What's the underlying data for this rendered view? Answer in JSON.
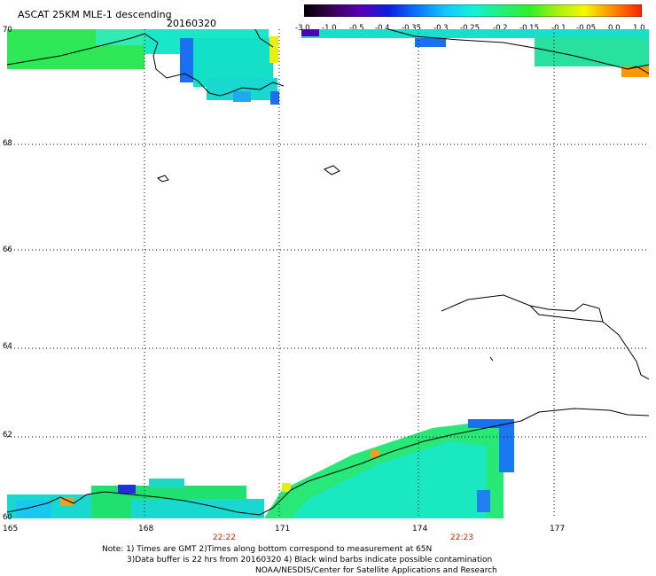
{
  "header": {
    "title": "ASCAT 25KM MLE-1 descending",
    "date": "20160320"
  },
  "colorbar": {
    "labels": [
      "-3.0",
      "-1.0",
      "-0.5",
      "-0.4",
      "-0.35",
      "-0.3",
      "-0.25",
      "-0.2",
      "-0.15",
      "-0.1",
      "-0.05",
      "0.0",
      "1.0"
    ]
  },
  "map": {
    "lat_labels": [
      "70",
      "68",
      "66",
      "64",
      "62",
      "60"
    ],
    "lon_labels": [
      "165",
      "168",
      "171",
      "174",
      "177"
    ],
    "time_labels": [
      "22:22",
      "22:23"
    ]
  },
  "footer": {
    "line1": "Note: 1) Times are GMT 2)Times along bottom correspond to measurement at 65N",
    "line2": "3)Data buffer is 22 hrs from 20160320 4) Black wind barbs indicate possible contamination",
    "line3": "NOAA/NESDIS/Center for Satellite Applications and Research"
  }
}
